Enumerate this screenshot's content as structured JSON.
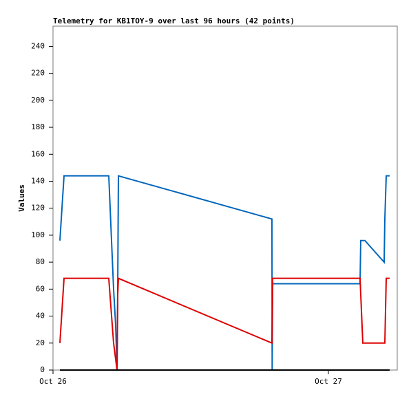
{
  "chart_data": {
    "type": "line",
    "title": "Telemetry for KB1TOY-9 over last 96 hours (42 points)",
    "y_label": "Values",
    "xlim": [
      0,
      30
    ],
    "xticks": [
      {
        "value": 0,
        "label": "Oct 26"
      },
      {
        "value": 24,
        "label": "Oct 27"
      }
    ],
    "ylim": [
      0,
      255
    ],
    "yticks": [
      0,
      20,
      40,
      60,
      80,
      100,
      120,
      140,
      160,
      180,
      200,
      220,
      240
    ],
    "grid": false,
    "series": [
      {
        "color": "#0066bb",
        "x": [
          0.6,
          0.96,
          4.86,
          5.28,
          5.46,
          5.58,
          5.64,
          5.7,
          19.08,
          19.1,
          19.14,
          26.76,
          26.82,
          27.18,
          28.86,
          28.92,
          29.04,
          29.34
        ],
        "values": [
          96,
          144,
          144,
          60,
          33,
          0,
          60,
          144,
          112,
          0,
          64,
          64,
          96,
          96,
          80,
          112,
          144,
          144
        ]
      },
      {
        "color": "#dd0000",
        "x": [
          0.6,
          0.96,
          4.86,
          5.28,
          5.58,
          5.64,
          5.7,
          19.08,
          19.14,
          26.76,
          27.0,
          28.92,
          29.04,
          29.34
        ],
        "values": [
          20,
          68,
          68,
          20,
          0,
          56,
          68,
          20,
          68,
          68,
          20,
          20,
          68,
          68
        ]
      },
      {
        "color": "#000000",
        "x": [
          0.6,
          29.34
        ],
        "values": [
          0,
          0
        ]
      }
    ]
  }
}
